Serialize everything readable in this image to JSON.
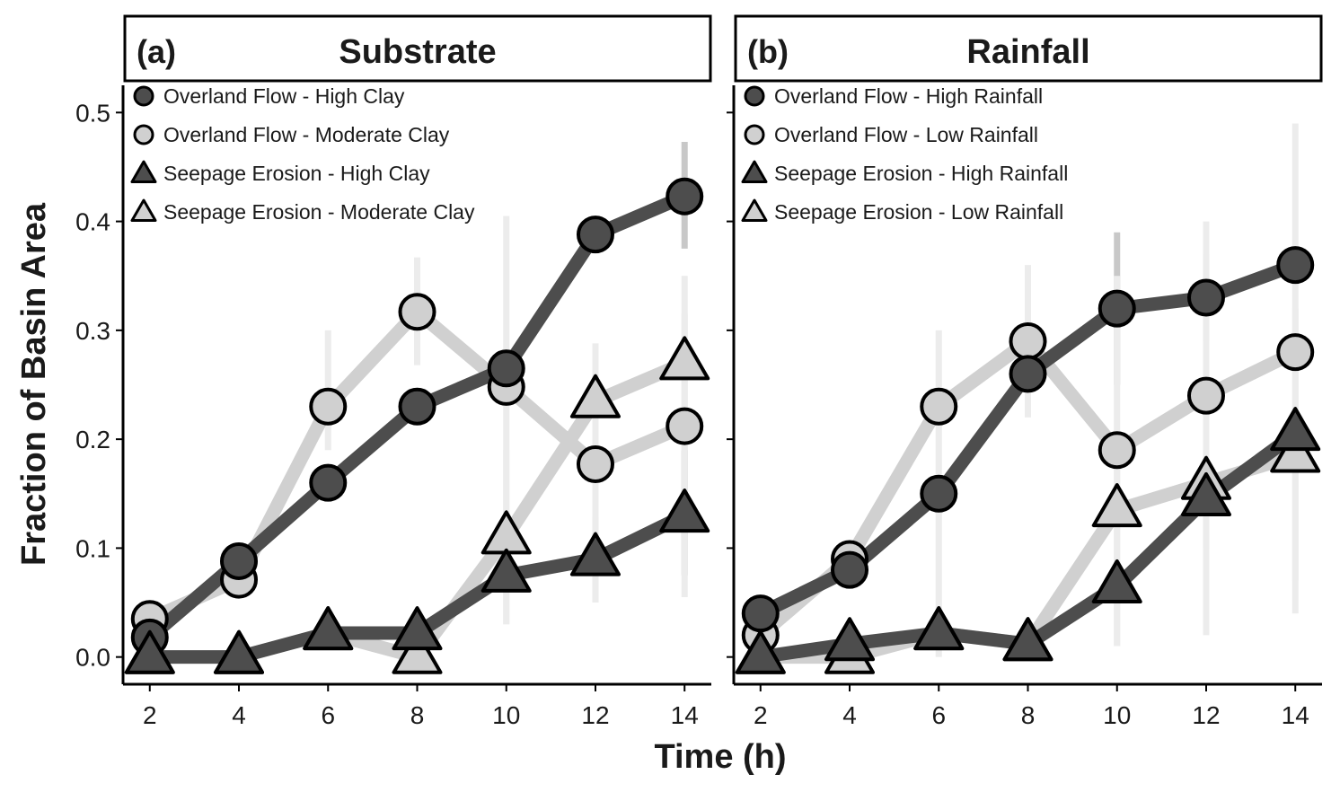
{
  "colors": {
    "dark": "#4d4d4d",
    "light": "#d0d0d0",
    "outline": "#000000",
    "error_dark": "#c8c8c8",
    "error_light": "#ececec"
  },
  "axes": {
    "xlabel": "Time (h)",
    "ylabel": "Fraction of Basin Area"
  },
  "chart_data": [
    {
      "type": "line",
      "panel_tag": "(a)",
      "title": "Substrate",
      "x": [
        2,
        4,
        6,
        8,
        10,
        12,
        14
      ],
      "xticks": [
        "2",
        "4",
        "6",
        "8",
        "10",
        "12",
        "14"
      ],
      "yticks": [
        "0.0",
        "0.1",
        "0.2",
        "0.3",
        "0.4",
        "0.5"
      ],
      "ylim": [
        -0.025,
        0.525
      ],
      "xlim": [
        1.4,
        14.6
      ],
      "legend_position": "top-left",
      "series": [
        {
          "name": "Overland Flow - High Clay",
          "marker": "circle",
          "tone": "dark",
          "values": [
            0.018,
            0.088,
            0.16,
            0.23,
            0.265,
            0.388,
            0.423
          ],
          "err_low": [
            null,
            null,
            null,
            null,
            null,
            null,
            0.375
          ],
          "err_high": [
            null,
            null,
            null,
            null,
            null,
            null,
            0.473
          ]
        },
        {
          "name": "Overland Flow - Moderate Clay",
          "marker": "circle",
          "tone": "light",
          "values": [
            0.035,
            0.071,
            0.23,
            0.317,
            0.248,
            0.177,
            0.212
          ],
          "err_low": [
            null,
            null,
            0.19,
            0.268,
            0.03,
            0.13,
            0.11
          ],
          "err_high": [
            null,
            null,
            0.3,
            0.367,
            0.405,
            0.23,
            0.315
          ]
        },
        {
          "name": "Seepage Erosion - High Clay",
          "marker": "triangle",
          "tone": "dark",
          "values": [
            0.0,
            0.0,
            0.022,
            0.022,
            0.075,
            0.09,
            0.13
          ],
          "err_low": [
            null,
            null,
            null,
            null,
            0.06,
            0.05,
            0.075
          ],
          "err_high": [
            null,
            null,
            null,
            null,
            0.09,
            0.128,
            0.19
          ]
        },
        {
          "name": "Seepage Erosion - Moderate Clay",
          "marker": "triangle",
          "tone": "light",
          "values": [
            0.0,
            0.0,
            0.022,
            0.0,
            0.11,
            0.235,
            0.27
          ],
          "err_low": [
            null,
            null,
            null,
            null,
            0.03,
            0.05,
            0.055
          ],
          "err_high": [
            null,
            null,
            null,
            null,
            0.19,
            0.288,
            0.35
          ]
        }
      ]
    },
    {
      "type": "line",
      "panel_tag": "(b)",
      "title": "Rainfall",
      "x": [
        2,
        4,
        6,
        8,
        10,
        12,
        14
      ],
      "xticks": [
        "2",
        "4",
        "6",
        "8",
        "10",
        "12",
        "14"
      ],
      "yticks": [
        "0.0",
        "0.1",
        "0.2",
        "0.3",
        "0.4",
        "0.5"
      ],
      "ylim": [
        -0.025,
        0.525
      ],
      "xlim": [
        1.4,
        14.6
      ],
      "legend_position": "top-left",
      "series": [
        {
          "name": "Overland Flow - High Rainfall",
          "marker": "circle",
          "tone": "dark",
          "values": [
            0.04,
            0.08,
            0.15,
            0.26,
            0.32,
            0.33,
            0.36
          ],
          "err_low": [
            null,
            null,
            null,
            null,
            0.25,
            0.29,
            null
          ],
          "err_high": [
            null,
            null,
            null,
            null,
            0.39,
            0.37,
            null
          ]
        },
        {
          "name": "Overland Flow - Low Rainfall",
          "marker": "circle",
          "tone": "light",
          "values": [
            0.02,
            0.09,
            0.23,
            0.29,
            0.19,
            0.24,
            0.28
          ],
          "err_low": [
            null,
            null,
            0.0,
            0.22,
            0.01,
            0.02,
            0.07
          ],
          "err_high": [
            null,
            null,
            0.3,
            0.36,
            0.35,
            0.4,
            0.49
          ]
        },
        {
          "name": "Seepage Erosion - High Rainfall",
          "marker": "triangle",
          "tone": "dark",
          "values": [
            0.0,
            0.012,
            0.022,
            0.012,
            0.065,
            0.145,
            0.205
          ],
          "err_low": [
            null,
            null,
            null,
            null,
            null,
            0.1,
            null
          ],
          "err_high": [
            null,
            null,
            null,
            null,
            null,
            0.19,
            null
          ]
        },
        {
          "name": "Seepage Erosion - Low Rainfall",
          "marker": "triangle",
          "tone": "light",
          "values": [
            0.0,
            0.0,
            0.022,
            0.012,
            0.135,
            0.16,
            0.185
          ],
          "err_low": [
            null,
            null,
            null,
            null,
            0.01,
            0.08,
            0.04
          ],
          "err_high": [
            null,
            null,
            null,
            null,
            0.2,
            0.22,
            0.32
          ]
        }
      ]
    }
  ]
}
